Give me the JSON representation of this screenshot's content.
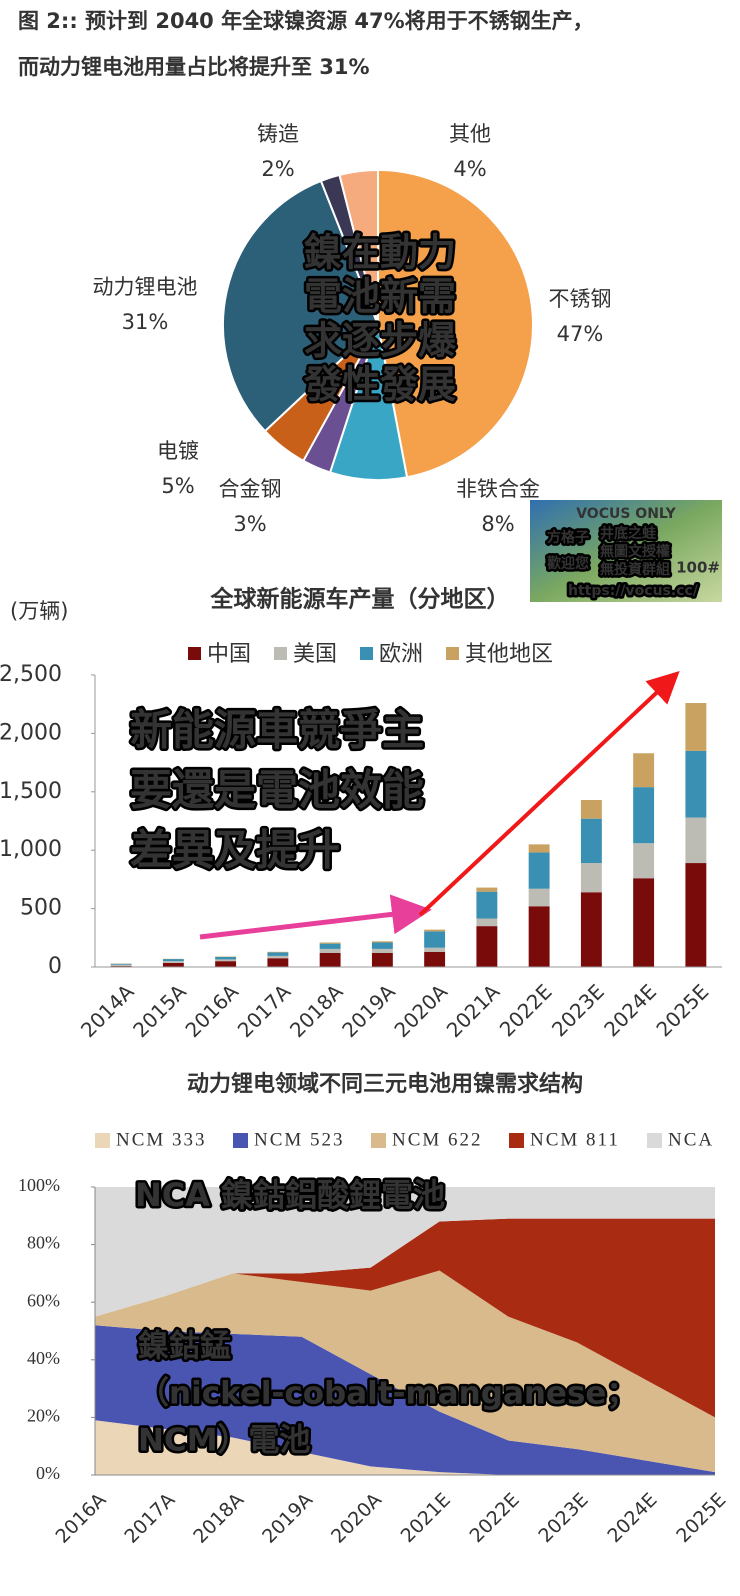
{
  "chart_data": [
    {
      "type": "pie",
      "title": [
        "图 2:: 预计到 2040 年全球镍资源 47%将用于不锈钢生产，",
        "而动力锂电池用量占比将提升至 31%"
      ],
      "categories": [
        "不锈钢",
        "非铁合金",
        "合金钢",
        "电镀",
        "动力锂电池",
        "铸造",
        "其他"
      ],
      "values": [
        47,
        8,
        3,
        5,
        31,
        2,
        4
      ],
      "value_labels": [
        "47%",
        "8%",
        "3%",
        "5%",
        "31%",
        "2%",
        "4%"
      ],
      "colors": [
        "#f5a04a",
        "#3aa6c6",
        "#6b4f93",
        "#c8601a",
        "#2c5f78",
        "#3b3856",
        "#f6ab7e"
      ],
      "annotation": [
        "鎳在動力",
        "電池新需",
        "求逐步爆",
        "發性發展"
      ]
    },
    {
      "type": "bar",
      "title": "全球新能源车产量（分地区）",
      "y_label": "(万辆)",
      "categories": [
        "2014A",
        "2015A",
        "2016A",
        "2017A",
        "2018A",
        "2019A",
        "2020A",
        "2021A",
        "2022E",
        "2023E",
        "2024E",
        "2025E"
      ],
      "series": [
        {
          "name": "中国",
          "color": "#7a0b0b",
          "values": [
            8,
            35,
            50,
            75,
            120,
            120,
            130,
            350,
            520,
            640,
            760,
            890
          ]
        },
        {
          "name": "美国",
          "color": "#bcbcb4",
          "values": [
            12,
            15,
            15,
            20,
            35,
            35,
            35,
            65,
            150,
            250,
            300,
            390
          ]
        },
        {
          "name": "欧洲",
          "color": "#3a90b2",
          "values": [
            8,
            18,
            22,
            30,
            45,
            55,
            140,
            230,
            310,
            380,
            480,
            570
          ]
        },
        {
          "name": "其他地区",
          "color": "#c9a262",
          "values": [
            2,
            2,
            3,
            5,
            10,
            10,
            15,
            35,
            70,
            160,
            290,
            410
          ]
        }
      ],
      "ylim": [
        0,
        2500
      ],
      "yticks": [
        0,
        500,
        {
          "value": 1000,
          "label": "1,000"
        },
        {
          "value": 1500,
          "label": "1,500"
        },
        {
          "value": 2000,
          "label": "2,000"
        },
        {
          "value": 2500,
          "label": "2,500"
        }
      ],
      "annotation": [
        "新能源車競爭主",
        "要還是電池效能",
        "差異及提升"
      ]
    },
    {
      "type": "area",
      "title": "动力锂电领域不同三元电池用镍需求结构",
      "categories": [
        "2016A",
        "2017A",
        "2018A",
        "2019A",
        "2020A",
        "2021E",
        "2022E",
        "2023E",
        "2024E",
        "2025E"
      ],
      "series": [
        {
          "name": "NCM 333",
          "color": "#ecd6b8",
          "values": [
            19,
            16,
            13,
            8,
            3,
            1,
            0,
            0,
            0,
            0
          ]
        },
        {
          "name": "NCM 523",
          "color": "#4a55b2",
          "values": [
            33,
            34,
            36,
            40,
            32,
            21,
            12,
            9,
            5,
            1
          ]
        },
        {
          "name": "NCM 622",
          "color": "#d9ba8c",
          "values": [
            3,
            12,
            21,
            19,
            29,
            49,
            43,
            37,
            28,
            19
          ]
        },
        {
          "name": "NCM 811",
          "color": "#a82b12",
          "values": [
            0,
            0,
            0,
            3,
            8,
            17,
            34,
            43,
            56,
            69
          ]
        },
        {
          "name": "NCA",
          "color": "#dadada",
          "values": [
            45,
            38,
            30,
            30,
            28,
            12,
            11,
            11,
            11,
            11
          ]
        }
      ],
      "ylim": [
        0,
        100
      ],
      "yticks": [
        {
          "value": 0,
          "label": "0%"
        },
        {
          "value": 20,
          "label": "20%"
        },
        {
          "value": 40,
          "label": "40%"
        },
        {
          "value": 60,
          "label": "60%"
        },
        {
          "value": 80,
          "label": "80%"
        },
        {
          "value": 100,
          "label": "100%"
        }
      ],
      "annotation_top": "NCA 鎳鈷鋁酸鋰電池",
      "annotation": [
        "鎳鈷錳",
        "（nickel-cobalt-manganese；",
        "NCM）電池"
      ]
    }
  ],
  "watermark": {
    "header": "VOCUS ONLY",
    "left": [
      "方格子",
      "歡迎您"
    ],
    "right": [
      "井底之蛙",
      "無圖文授權",
      "無投資群組"
    ],
    "url": "https://vocus.cc/",
    "tag": "100#"
  }
}
